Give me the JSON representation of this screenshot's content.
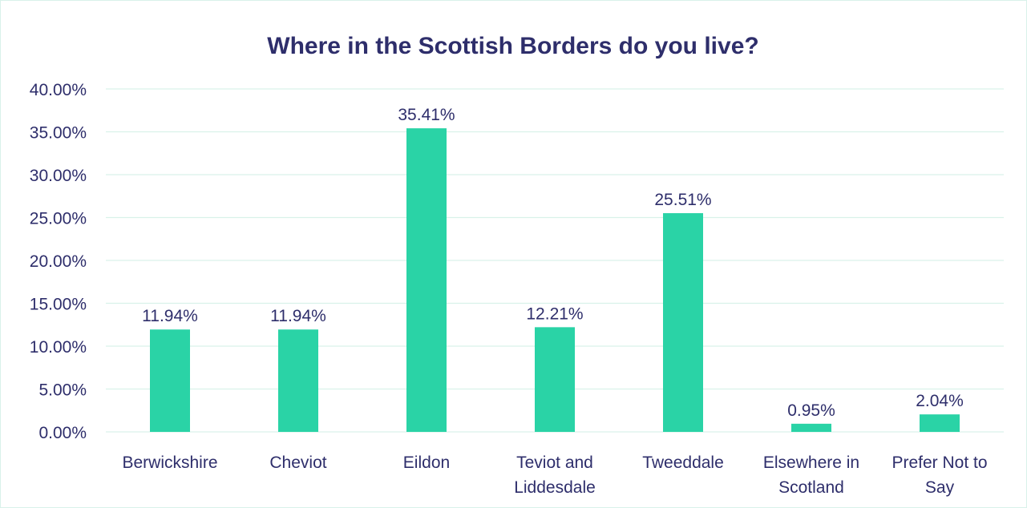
{
  "chart_data": {
    "type": "bar",
    "title": "Where in the Scottish Borders do you live?",
    "xlabel": "",
    "ylabel": "",
    "categories": [
      [
        "Berwickshire"
      ],
      [
        "Cheviot"
      ],
      [
        "Eildon"
      ],
      [
        "Teviot and",
        "Liddesdale"
      ],
      [
        "Tweeddale"
      ],
      [
        "Elsewhere in",
        "Scotland"
      ],
      [
        "Prefer Not to",
        "Say"
      ]
    ],
    "values": [
      11.94,
      11.94,
      35.41,
      12.21,
      25.51,
      0.95,
      2.04
    ],
    "data_labels": [
      "11.94%",
      "11.94%",
      "35.41%",
      "12.21%",
      "25.51%",
      "0.95%",
      "2.04%"
    ],
    "ylim": [
      0,
      40
    ],
    "yticks": [
      0,
      5,
      10,
      15,
      20,
      25,
      30,
      35,
      40
    ],
    "ytick_labels": [
      "0.00%",
      "5.00%",
      "10.00%",
      "15.00%",
      "20.00%",
      "25.00%",
      "30.00%",
      "35.00%",
      "40.00%"
    ],
    "grid": true,
    "legend": "none",
    "colors": {
      "bar": "#2ad3a6",
      "grid": "#d9f2ea",
      "text": "#2e2e6b"
    }
  }
}
